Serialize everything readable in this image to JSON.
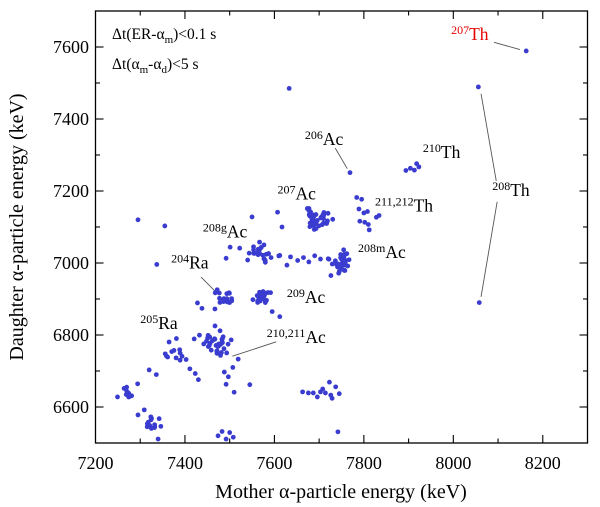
{
  "chart_data": {
    "type": "scatter",
    "xlabel": "Mother α-particle energy (keV)",
    "ylabel": "Daughter α-particle energy (keV)",
    "xlim": [
      7200,
      8300
    ],
    "ylim": [
      6500,
      7700
    ],
    "xticks_major": [
      7400,
      7600,
      7800,
      8000,
      8200
    ],
    "xticks_minor": [
      7300,
      7500,
      7700,
      7900,
      8100
    ],
    "xtick_label_values": [
      7200,
      7400,
      7600,
      7800,
      8000,
      8200
    ],
    "yticks_major": [
      6600,
      6800,
      7000,
      7200,
      7400,
      7600
    ],
    "yticks_minor": [
      6700,
      6900,
      7100,
      7300,
      7500
    ],
    "grid": false,
    "marker_color": "#3a3ccf",
    "marker_radius": 2.4,
    "accent_red": "#e60000",
    "leader_color": "#555555",
    "conditions": {
      "lines": [
        {
          "x": 7237,
          "y": 7622,
          "segments": [
            {
              "t": "Δt(ER-α"
            },
            {
              "sub": "m"
            },
            {
              "t": ")<0.1 s"
            }
          ]
        },
        {
          "x": 7237,
          "y": 7539,
          "segments": [
            {
              "t": "Δt(α"
            },
            {
              "sub": "m"
            },
            {
              "t": "-α"
            },
            {
              "sub": "d"
            },
            {
              "t": ")<5 s"
            }
          ]
        }
      ]
    },
    "annotations": [
      {
        "sup": "207",
        "main": "Th",
        "x": 7995,
        "y": 7636,
        "color": "#e60000"
      },
      {
        "sup": "210",
        "main": "Th",
        "x": 7932,
        "y": 7308,
        "color": "#000000"
      },
      {
        "sup": "206",
        "main": "Ac",
        "x": 7668,
        "y": 7344,
        "color": "#000000"
      },
      {
        "sup": "208",
        "main": "Th",
        "x": 8087,
        "y": 7203,
        "color": "#000000"
      },
      {
        "sup": "211,212",
        "main": "Th",
        "x": 7825,
        "y": 7160,
        "color": "#000000"
      },
      {
        "sup": "207",
        "main": "Ac",
        "x": 7607,
        "y": 7193,
        "color": "#000000"
      },
      {
        "sup": "208g",
        "main": "Ac",
        "x": 7440,
        "y": 7088,
        "color": "#000000"
      },
      {
        "sup": "208m",
        "main": "Ac",
        "x": 7787,
        "y": 7030,
        "color": "#000000"
      },
      {
        "sup": "204",
        "main": "Ra",
        "x": 7369,
        "y": 7002,
        "color": "#000000"
      },
      {
        "sup": "209",
        "main": "Ac",
        "x": 7628,
        "y": 6906,
        "color": "#000000"
      },
      {
        "sup": "205",
        "main": "Ra",
        "x": 7300,
        "y": 6833,
        "color": "#000000"
      },
      {
        "sup": "210,211",
        "main": "Ac",
        "x": 7583,
        "y": 6794,
        "color": "#000000"
      }
    ],
    "leaders": [
      {
        "x1": 8091,
        "y1": 7613,
        "x2": 8149,
        "y2": 7593
      },
      {
        "x1": 7736,
        "y1": 7319,
        "x2": 7763,
        "y2": 7262
      },
      {
        "x1": 8062,
        "y1": 7470,
        "x2": 8096,
        "y2": 7228
      },
      {
        "x1": 8098,
        "y1": 7170,
        "x2": 8062,
        "y2": 6906
      },
      {
        "x1": 7436,
        "y1": 6961,
        "x2": 7467,
        "y2": 6922
      },
      {
        "x1": 7604,
        "y1": 6781,
        "x2": 7506,
        "y2": 6741
      }
    ],
    "clusters": [
      {
        "name": "Ac-207",
        "cx": 7698,
        "cy": 7122,
        "n": 40,
        "sx": 16,
        "sy": 13,
        "seed": 11
      },
      {
        "name": "Ac-208g",
        "cx": 7566,
        "cy": 7032,
        "n": 24,
        "sx": 14,
        "sy": 13,
        "seed": 22
      },
      {
        "name": "Ac-208m",
        "cx": 7749,
        "cy": 7000,
        "n": 34,
        "sx": 13,
        "sy": 15,
        "seed": 33
      },
      {
        "name": "Ac-209",
        "cx": 7574,
        "cy": 6903,
        "n": 22,
        "sx": 12,
        "sy": 11,
        "seed": 44
      },
      {
        "name": "Ra-204",
        "cx": 7483,
        "cy": 6901,
        "n": 20,
        "sx": 12,
        "sy": 12,
        "seed": 55
      },
      {
        "name": "Ac-210-211",
        "cx": 7469,
        "cy": 6777,
        "n": 34,
        "sx": 14,
        "sy": 14,
        "seed": 66
      },
      {
        "name": "Ra-205",
        "cx": 7372,
        "cy": 6757,
        "n": 14,
        "sx": 17,
        "sy": 19,
        "seed": 77
      },
      {
        "name": "group-6550",
        "cx": 7327,
        "cy": 6551,
        "n": 15,
        "sx": 9,
        "sy": 11,
        "seed": 88
      },
      {
        "name": "group-6630",
        "cx": 7273,
        "cy": 6636,
        "n": 11,
        "sx": 14,
        "sy": 12,
        "seed": 99
      }
    ],
    "points": [
      [
        8163,
        7589
      ],
      [
        8056,
        7489
      ],
      [
        8058,
        6890
      ],
      [
        7633,
        7485
      ],
      [
        7769,
        7251
      ],
      [
        7894,
        7257
      ],
      [
        7904,
        7263
      ],
      [
        7913,
        7258
      ],
      [
        7918,
        7276
      ],
      [
        7923,
        7267
      ],
      [
        7784,
        7182
      ],
      [
        7795,
        7177
      ],
      [
        7789,
        7150
      ],
      [
        7800,
        7139
      ],
      [
        7808,
        7143
      ],
      [
        7791,
        7116
      ],
      [
        7802,
        7113
      ],
      [
        7810,
        7107
      ],
      [
        7828,
        7127
      ],
      [
        7834,
        7132
      ],
      [
        7812,
        7092
      ],
      [
        7295,
        7120
      ],
      [
        7355,
        7103
      ],
      [
        7337,
        6996
      ],
      [
        7492,
        7013
      ],
      [
        7501,
        7044
      ],
      [
        7550,
        7128
      ],
      [
        7607,
        7141
      ],
      [
        7617,
        7100
      ],
      [
        7612,
        7021
      ],
      [
        7628,
        6994
      ],
      [
        7636,
        7017
      ],
      [
        7652,
        7007
      ],
      [
        7665,
        7015
      ],
      [
        7677,
        7003
      ],
      [
        7690,
        7020
      ],
      [
        7703,
        7011
      ],
      [
        7595,
        6865
      ],
      [
        7612,
        6851
      ],
      [
        7428,
        6889
      ],
      [
        7438,
        6874
      ],
      [
        7488,
        6697
      ],
      [
        7497,
        6684
      ],
      [
        7492,
        6663
      ],
      [
        7510,
        6641
      ],
      [
        7545,
        6662
      ],
      [
        7519,
        6733
      ],
      [
        7507,
        6710
      ],
      [
        7411,
        6706
      ],
      [
        7423,
        6693
      ],
      [
        7430,
        6676
      ],
      [
        7320,
        6703
      ],
      [
        7336,
        6690
      ],
      [
        7663,
        6642
      ],
      [
        7676,
        6639
      ],
      [
        7687,
        6639
      ],
      [
        7696,
        6628
      ],
      [
        7703,
        6642
      ],
      [
        7708,
        6650
      ],
      [
        7714,
        6639
      ],
      [
        7723,
        6669
      ],
      [
        7726,
        6633
      ],
      [
        7729,
        6624
      ],
      [
        7737,
        6656
      ],
      [
        7745,
        6637
      ],
      [
        7295,
        6578
      ],
      [
        7309,
        6592
      ],
      [
        7340,
        6511
      ],
      [
        7474,
        6520
      ],
      [
        7483,
        6532
      ],
      [
        7492,
        6511
      ],
      [
        7500,
        6529
      ],
      [
        7508,
        6516
      ],
      [
        7742,
        6531
      ]
    ]
  }
}
